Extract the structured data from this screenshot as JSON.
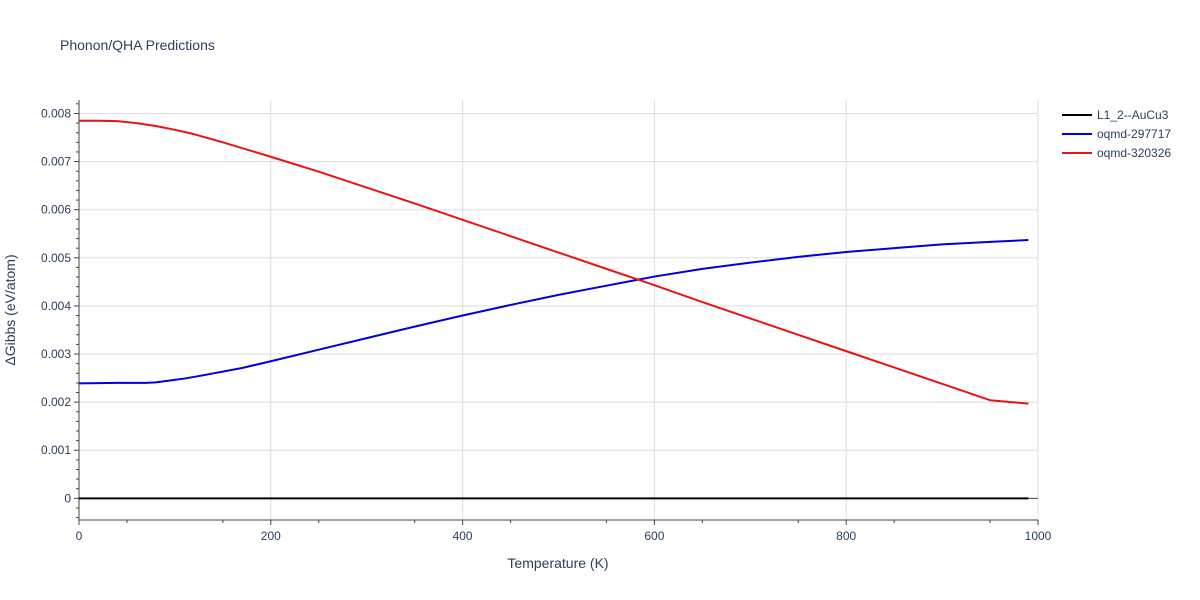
{
  "chart_data": {
    "type": "line",
    "title": "Phonon/QHA Predictions",
    "xlabel": "Temperature (K)",
    "ylabel": "ΔGibbs (eV/atom)",
    "xlim": [
      0,
      1000
    ],
    "ylim": [
      -0.00045,
      0.00828
    ],
    "x_ticks": [
      0,
      200,
      400,
      600,
      800,
      1000
    ],
    "x_tick_labels": [
      "0",
      "200",
      "400",
      "600",
      "800",
      "1000"
    ],
    "y_ticks": [
      0,
      0.001,
      0.002,
      0.003,
      0.004,
      0.005,
      0.006,
      0.007,
      0.008
    ],
    "y_tick_labels": [
      "0",
      "0.001",
      "0.002",
      "0.003",
      "0.004",
      "0.005",
      "0.006",
      "0.007",
      "0.008"
    ],
    "grid": true,
    "legend_position": "top-right",
    "series": [
      {
        "name": "L1_2--AuCu3",
        "color": "#000000",
        "x": [
          0,
          990
        ],
        "y": [
          0,
          0
        ]
      },
      {
        "name": "oqmd-297717",
        "color": "#0000dd",
        "x": [
          0,
          40,
          70,
          80,
          110,
          130,
          170,
          200,
          250,
          300,
          350,
          400,
          450,
          500,
          550,
          600,
          650,
          700,
          750,
          800,
          850,
          900,
          950,
          990
        ],
        "y": [
          0.00239,
          0.0024,
          0.0024,
          0.00241,
          0.00249,
          0.00256,
          0.00271,
          0.00285,
          0.00309,
          0.00333,
          0.00357,
          0.0038,
          0.00402,
          0.00423,
          0.00442,
          0.00461,
          0.00477,
          0.0049,
          0.00502,
          0.00512,
          0.0052,
          0.00528,
          0.00533,
          0.00537
        ]
      },
      {
        "name": "oqmd-320326",
        "color": "#ee1111",
        "x": [
          0,
          20,
          40,
          60,
          80,
          100,
          120,
          150,
          200,
          250,
          300,
          350,
          400,
          450,
          500,
          550,
          600,
          650,
          700,
          750,
          800,
          850,
          900,
          950,
          990
        ],
        "y": [
          0.00785,
          0.00785,
          0.00784,
          0.0078,
          0.00774,
          0.00766,
          0.00757,
          0.0074,
          0.0071,
          0.00679,
          0.00646,
          0.00613,
          0.00579,
          0.00545,
          0.00511,
          0.00477,
          0.00443,
          0.00408,
          0.00374,
          0.0034,
          0.00306,
          0.00272,
          0.00238,
          0.00204,
          0.00197
        ]
      }
    ]
  }
}
